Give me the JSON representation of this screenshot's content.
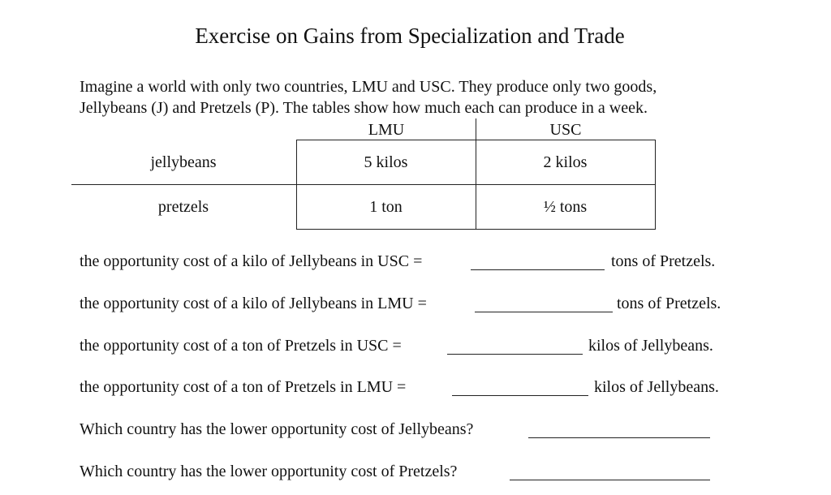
{
  "title": "Exercise on Gains from Specialization and Trade",
  "intro": [
    "Imagine a world with only two countries, LMU and USC. They produce only two goods,",
    "Jellybeans (J) and Pretzels (P). The tables show how much each can produce in a week."
  ],
  "table": {
    "columns": [
      "LMU",
      "USC"
    ],
    "rows": [
      [
        "jellybeans",
        "5 kilos",
        "2 kilos"
      ],
      [
        "pretzels",
        "1 ton",
        "½ tons"
      ]
    ]
  },
  "questions": [
    {
      "prefix": "the opportunity cost of a kilo of Jellybeans in USC =",
      "suffix": "tons of Pretzels."
    },
    {
      "prefix": "the opportunity cost of a kilo of Jellybeans in LMU =",
      "suffix": "tons of Pretzels."
    },
    {
      "prefix": "the opportunity cost of a ton of Pretzels in USC =",
      "suffix": "kilos of Jellybeans."
    },
    {
      "prefix": "the opportunity cost of a ton of Pretzels in LMU =",
      "suffix": "kilos of Jellybeans."
    },
    {
      "prefix": "Which country has the lower opportunity cost of Jellybeans?"
    },
    {
      "prefix": "Which country has the lower opportunity cost of Pretzels?"
    }
  ]
}
